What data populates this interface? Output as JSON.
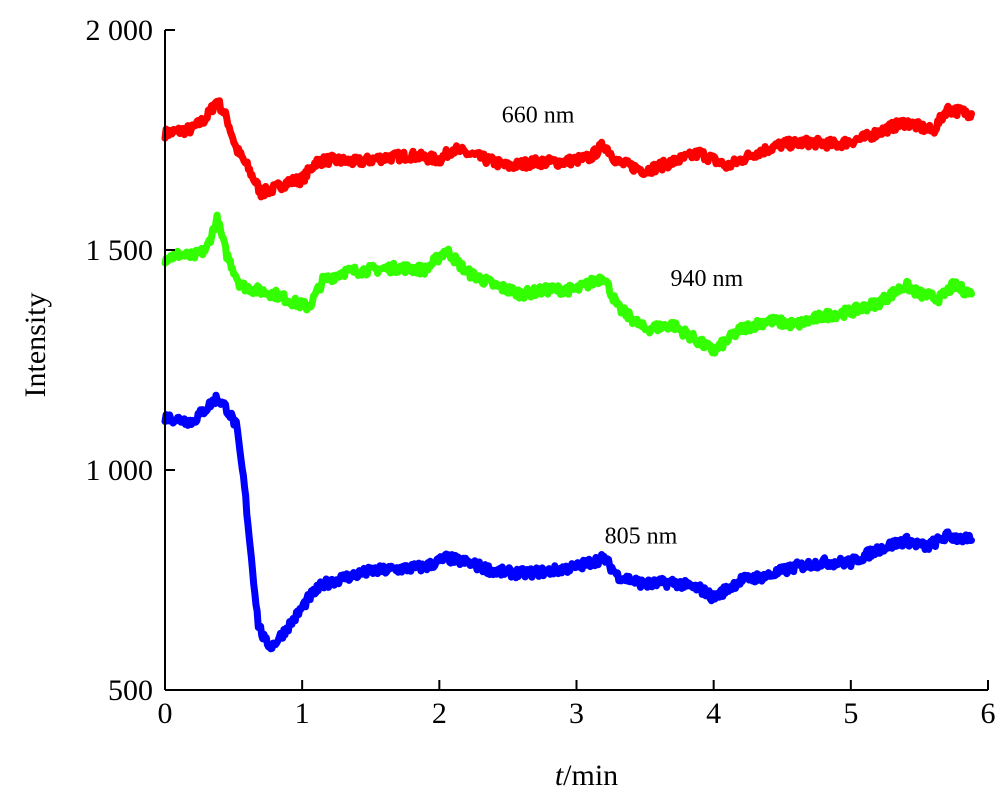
{
  "chart_data": {
    "type": "line",
    "title": "",
    "xlabel_italic": "t",
    "xlabel_rest": "/min",
    "ylabel": "Intensity",
    "xlim": [
      0,
      6
    ],
    "ylim": [
      500,
      2000
    ],
    "x_ticks": [
      0,
      1,
      2,
      3,
      4,
      5,
      6
    ],
    "x_tick_labels": [
      "0",
      "1",
      "2",
      "3",
      "4",
      "5",
      "6"
    ],
    "y_ticks": [
      500,
      1000,
      1500,
      2000
    ],
    "y_tick_labels": [
      "500",
      "1 000",
      "1 500",
      "2 000"
    ],
    "grid": false,
    "series": [
      {
        "name": "660 nm",
        "color": "#ff0000",
        "x": [
          0,
          0.1,
          0.2,
          0.3,
          0.38,
          0.45,
          0.52,
          0.6,
          0.7,
          0.8,
          0.9,
          1.0,
          1.1,
          1.2,
          1.4,
          1.6,
          1.8,
          2.0,
          2.1,
          2.3,
          2.5,
          2.7,
          2.9,
          3.1,
          3.2,
          3.3,
          3.5,
          3.7,
          3.9,
          4.1,
          4.3,
          4.5,
          4.7,
          4.9,
          5.1,
          5.3,
          5.4,
          5.5,
          5.6,
          5.7,
          5.88
        ],
        "y": [
          1765,
          1770,
          1775,
          1800,
          1840,
          1800,
          1730,
          1690,
          1630,
          1640,
          1655,
          1660,
          1700,
          1705,
          1700,
          1710,
          1715,
          1705,
          1730,
          1710,
          1690,
          1700,
          1700,
          1710,
          1740,
          1700,
          1680,
          1700,
          1720,
          1690,
          1720,
          1740,
          1745,
          1740,
          1755,
          1780,
          1790,
          1780,
          1770,
          1820,
          1810
        ],
        "label_x": 2.72,
        "label_y": 1790
      },
      {
        "name": "940 nm",
        "color": "#33ff00",
        "x": [
          0,
          0.1,
          0.2,
          0.3,
          0.38,
          0.45,
          0.55,
          0.65,
          0.8,
          0.95,
          1.05,
          1.15,
          1.3,
          1.5,
          1.7,
          1.9,
          2.05,
          2.2,
          2.4,
          2.6,
          2.8,
          3.0,
          3.2,
          3.3,
          3.5,
          3.7,
          3.9,
          4.0,
          4.2,
          4.4,
          4.6,
          4.8,
          5.0,
          5.2,
          5.4,
          5.5,
          5.65,
          5.75,
          5.88
        ],
        "y": [
          1480,
          1490,
          1485,
          1500,
          1570,
          1490,
          1420,
          1410,
          1400,
          1380,
          1370,
          1430,
          1450,
          1455,
          1460,
          1455,
          1500,
          1450,
          1420,
          1400,
          1410,
          1410,
          1440,
          1370,
          1320,
          1330,
          1290,
          1270,
          1320,
          1340,
          1330,
          1350,
          1360,
          1380,
          1420,
          1400,
          1390,
          1420,
          1400
        ],
        "label_x": 3.95,
        "label_y": 1418
      },
      {
        "name": "805 nm",
        "color": "#0000ff",
        "x": [
          0,
          0.1,
          0.2,
          0.3,
          0.38,
          0.45,
          0.52,
          0.58,
          0.63,
          0.68,
          0.73,
          0.78,
          0.85,
          0.95,
          1.05,
          1.15,
          1.3,
          1.5,
          1.7,
          1.9,
          2.05,
          2.2,
          2.4,
          2.6,
          2.8,
          3.0,
          3.2,
          3.3,
          3.5,
          3.7,
          3.9,
          4.0,
          4.2,
          4.4,
          4.6,
          4.8,
          5.0,
          5.2,
          5.4,
          5.55,
          5.7,
          5.88
        ],
        "y": [
          1120,
          1115,
          1110,
          1140,
          1165,
          1140,
          1100,
          960,
          800,
          650,
          610,
          600,
          625,
          665,
          710,
          740,
          755,
          770,
          775,
          780,
          800,
          790,
          770,
          765,
          770,
          780,
          800,
          760,
          740,
          745,
          730,
          710,
          750,
          760,
          780,
          790,
          790,
          820,
          840,
          825,
          850,
          840
        ],
        "label_x": 3.47,
        "label_y": 833
      }
    ]
  }
}
